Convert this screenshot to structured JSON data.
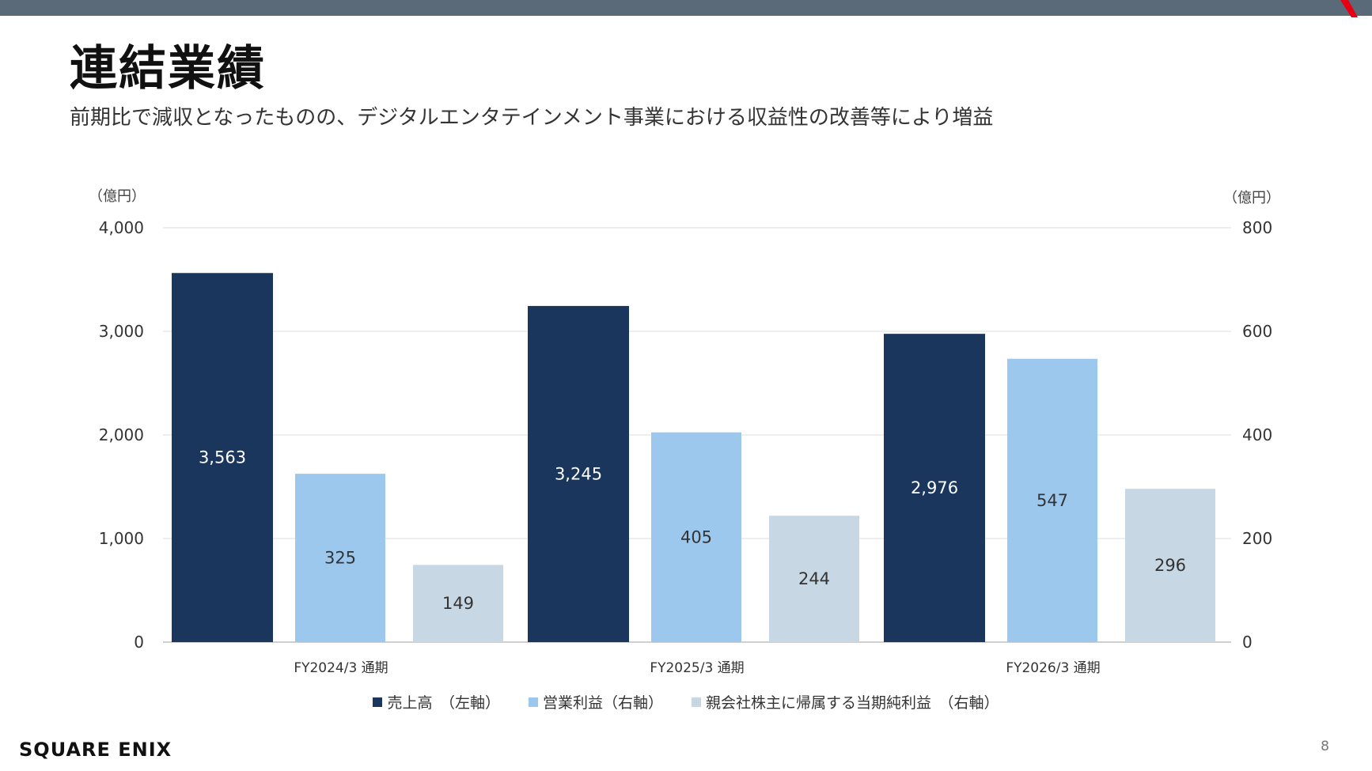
{
  "title": "連結業績",
  "subtitle": "前期比で減収となったものの、デジタルエンタテインメント事業における収益性の改善等により増益",
  "page_number": "8",
  "logo_text": "SQUARE ENIX",
  "colors": {
    "navy": "#1a365d",
    "light_blue": "#9dc8ee",
    "pale_blue": "#c7d7e3",
    "topbar": "#5b6a79",
    "accent": "#e60012"
  },
  "chart_data": {
    "type": "bar",
    "categories": [
      "FY2024/3 通期",
      "FY2025/3 通期",
      "FY2026/3 通期"
    ],
    "left_axis": {
      "unit_label": "（億円）",
      "range": [
        0,
        4000
      ],
      "ticks": [
        "0",
        "1,000",
        "2,000",
        "3,000",
        "4,000"
      ]
    },
    "right_axis": {
      "unit_label": "（億円）",
      "range": [
        0,
        800
      ],
      "ticks": [
        "0",
        "200",
        "400",
        "600",
        "800"
      ]
    },
    "series": [
      {
        "name": "売上高　（左軸）",
        "axis": "left",
        "color": "#1a365d",
        "values": [
          3563,
          3245,
          2976
        ],
        "labels": [
          "3,563",
          "3,245",
          "2,976"
        ],
        "label_color": "#ffffff"
      },
      {
        "name": "営業利益（右軸）",
        "axis": "right",
        "color": "#9dc8ee",
        "values": [
          325,
          405,
          547
        ],
        "labels": [
          "325",
          "405",
          "547"
        ],
        "label_color": "#333333"
      },
      {
        "name": "親会社株主に帰属する当期純利益　（右軸）",
        "axis": "right",
        "color": "#c7d7e3",
        "values": [
          149,
          244,
          296
        ],
        "labels": [
          "149",
          "244",
          "296"
        ],
        "label_color": "#333333"
      }
    ],
    "grid": true,
    "legend_position": "bottom"
  }
}
